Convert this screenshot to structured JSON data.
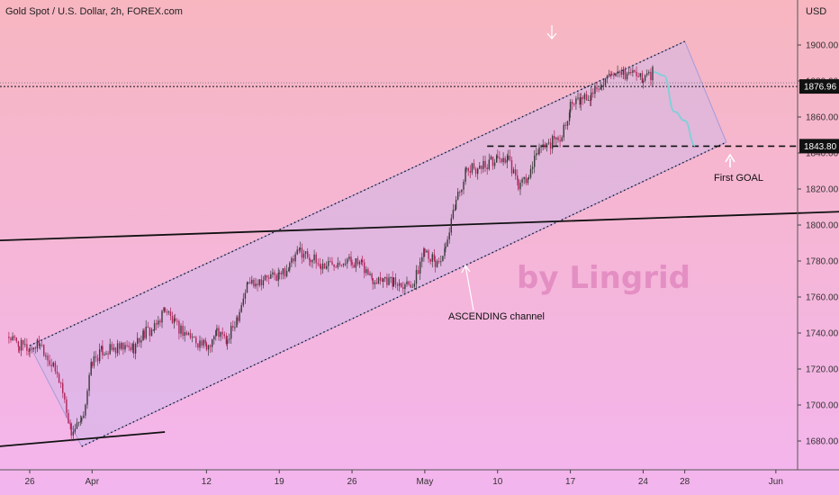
{
  "header": {
    "title": "Gold Spot / U.S. Dollar, 2h, FOREX.com",
    "currency": "USD"
  },
  "colors": {
    "bg_top": "#f7b6c0",
    "bg_bottom": "#f3b5ee",
    "channel_fill": "#c9b8ec",
    "candle": "#3a3a3a",
    "candle_bear": "#b0245a",
    "projection": "#7fd0d8",
    "watermark": "#e48fc4",
    "tag_bg": "#111111"
  },
  "annotations": {
    "ascending_channel": "ASCENDING channel",
    "first_goal": "First GOAL",
    "watermark": "by Lingrid"
  },
  "price_tags": {
    "current": "1876.96",
    "goal": "1843.80"
  },
  "chart_data": {
    "type": "candlestick",
    "title": "Gold Spot / U.S. Dollar, 2h, FOREX.com",
    "ylim": [
      1660,
      1920
    ],
    "yticks": [
      1680,
      1700,
      1720,
      1740,
      1760,
      1780,
      1800,
      1820,
      1840,
      1860,
      1880,
      1900
    ],
    "ytick_labels": [
      "1680.00",
      "1700.00",
      "1720.00",
      "1740.00",
      "1760.00",
      "1780.00",
      "1800.00",
      "1820.00",
      "1840.00",
      "1860.00",
      "1880.00",
      "1900.00"
    ],
    "xlabels": [
      "26",
      "Apr",
      "12",
      "19",
      "26",
      "May",
      "10",
      "17",
      "24",
      "28",
      "Jun"
    ],
    "price_path": [
      [
        "2021-03-24",
        1738
      ],
      [
        "2021-03-25",
        1733
      ],
      [
        "2021-03-26",
        1731
      ],
      [
        "2021-03-27",
        1735
      ],
      [
        "2021-03-29",
        1712
      ],
      [
        "2021-03-30",
        1685
      ],
      [
        "2021-03-31",
        1690
      ],
      [
        "2021-04-01",
        1724
      ],
      [
        "2021-04-02",
        1730
      ],
      [
        "2021-04-05",
        1732
      ],
      [
        "2021-04-06",
        1740
      ],
      [
        "2021-04-07",
        1742
      ],
      [
        "2021-04-08",
        1754
      ],
      [
        "2021-04-09",
        1744
      ],
      [
        "2021-04-12",
        1732
      ],
      [
        "2021-04-13",
        1741
      ],
      [
        "2021-04-14",
        1735
      ],
      [
        "2021-04-15",
        1750
      ],
      [
        "2021-04-16",
        1768
      ],
      [
        "2021-04-19",
        1772
      ],
      [
        "2021-04-20",
        1777
      ],
      [
        "2021-04-21",
        1786
      ],
      [
        "2021-04-22",
        1782
      ],
      [
        "2021-04-23",
        1777
      ],
      [
        "2021-04-25",
        1781
      ],
      [
        "2021-04-26",
        1780
      ],
      [
        "2021-04-27",
        1777
      ],
      [
        "2021-04-28",
        1770
      ],
      [
        "2021-04-29",
        1771
      ],
      [
        "2021-04-30",
        1768
      ],
      [
        "2021-05-02",
        1768
      ],
      [
        "2021-05-03",
        1788
      ],
      [
        "2021-05-04",
        1778
      ],
      [
        "2021-05-05",
        1785
      ],
      [
        "2021-05-06",
        1814
      ],
      [
        "2021-05-07",
        1830
      ],
      [
        "2021-05-09",
        1834
      ],
      [
        "2021-05-10",
        1837
      ],
      [
        "2021-05-11",
        1836
      ],
      [
        "2021-05-12",
        1822
      ],
      [
        "2021-05-13",
        1826
      ],
      [
        "2021-05-14",
        1843
      ],
      [
        "2021-05-16",
        1848
      ],
      [
        "2021-05-17",
        1866
      ],
      [
        "2021-05-18",
        1869
      ],
      [
        "2021-05-19",
        1872
      ],
      [
        "2021-05-20",
        1880
      ],
      [
        "2021-05-21",
        1881
      ],
      [
        "2021-05-23",
        1885
      ],
      [
        "2021-05-24",
        1881
      ],
      [
        "2021-05-25",
        1885
      ]
    ],
    "channel": {
      "upper": [
        [
          "2021-03-26",
          1733
        ],
        [
          "2021-05-28",
          1902
        ]
      ],
      "lower": [
        [
          "2021-03-31",
          1677
        ],
        [
          "2021-06-01",
          1846
        ]
      ]
    },
    "horizontal_lines": [
      1876.96,
      1843.8
    ],
    "trendlines": {
      "long_resistance": [
        [
          "2021-03-21",
          1791
        ],
        [
          "2021-06-15",
          1808
        ]
      ],
      "march_support": [
        [
          "2021-03-21",
          1676
        ],
        [
          "2021-04-08",
          1685
        ]
      ]
    },
    "projection_path": [
      [
        "2021-05-25",
        1885
      ],
      [
        "2021-05-26",
        1883
      ],
      [
        "2021-05-27",
        1863
      ],
      [
        "2021-05-28",
        1858
      ],
      [
        "2021-05-29",
        1844
      ]
    ]
  }
}
